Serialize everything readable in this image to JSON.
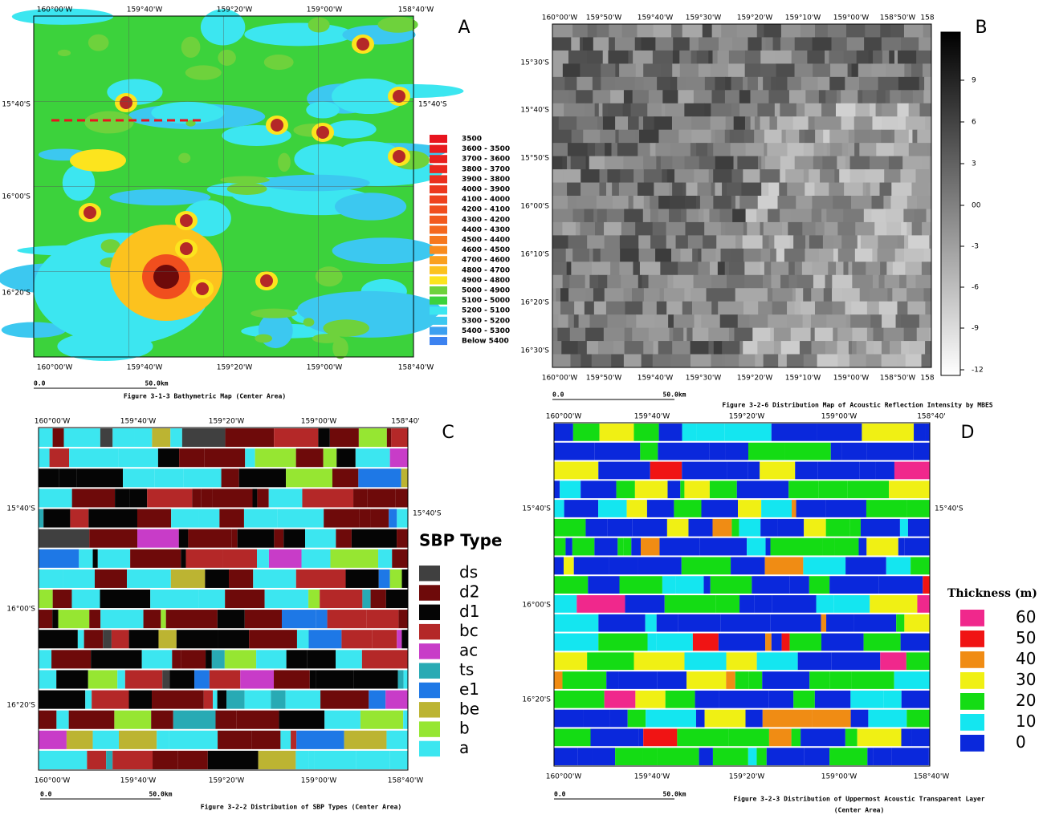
{
  "panels": [
    {
      "letter": "A",
      "top_labels": [
        "160°00'W",
        "159°40'W",
        "159°20'W",
        "159°00'W",
        "158°40'W"
      ],
      "bottom_labels": [
        "160°00'W",
        "159°40'W",
        "159°20'W",
        "159°00'W",
        "158°40'W"
      ],
      "left_labels": [
        "15°40'S",
        "16°00'S",
        "16°20'S"
      ],
      "right_labels": [
        "15°40'S"
      ],
      "legend": [
        {
          "label": "3500",
          "color": "#e8141e"
        },
        {
          "label": "3600 - 3500",
          "color": "#e81a1e"
        },
        {
          "label": "3700 - 3600",
          "color": "#e8201e"
        },
        {
          "label": "3800 - 3700",
          "color": "#ea281e"
        },
        {
          "label": "3900 - 3800",
          "color": "#ea301e"
        },
        {
          "label": "4000 - 3900",
          "color": "#ec381e"
        },
        {
          "label": "4100 - 4000",
          "color": "#ee421e"
        },
        {
          "label": "4200 - 4100",
          "color": "#f04e1e"
        },
        {
          "label": "4300 - 4200",
          "color": "#f25a1e"
        },
        {
          "label": "4400 - 4300",
          "color": "#f4681e"
        },
        {
          "label": "4500 - 4400",
          "color": "#f6781e"
        },
        {
          "label": "4600 - 4500",
          "color": "#f88c1e"
        },
        {
          "label": "4700 - 4600",
          "color": "#faa01e"
        },
        {
          "label": "4800 - 4700",
          "color": "#fcc21e"
        },
        {
          "label": "4900 - 4800",
          "color": "#fce41e"
        },
        {
          "label": "5000 - 4900",
          "color": "#6ed23c"
        },
        {
          "label": "5100 - 5000",
          "color": "#3cd23c"
        },
        {
          "label": "5200 - 5100",
          "color": "#3ce6f0"
        },
        {
          "label": "5300 - 5200",
          "color": "#3cc8f0"
        },
        {
          "label": "5400 - 5300",
          "color": "#3ca0f0"
        },
        {
          "label": "Below  5400",
          "color": "#3c82f0"
        }
      ],
      "scale": [
        "0.0",
        "50.0km"
      ],
      "caption": [
        "Figure 3-1-3 Bathymetric Map (Center Area)"
      ]
    },
    {
      "letter": "B",
      "top_labels": [
        "160°00'W",
        "159°50'W",
        "159°40'W",
        "159°30'W",
        "159°20'W",
        "159°10'W",
        "159°00'W",
        "158°50'W",
        "158"
      ],
      "bottom_labels": [
        "160°00'W",
        "159°50'W",
        "159°40'W",
        "159°30'W",
        "159°20'W",
        "159°10'W",
        "159°00'W",
        "158°50'W",
        "158"
      ],
      "left_labels": [
        "15°30'S",
        "15°40'S",
        "15°50'S",
        "16°00'S",
        "16°10'S",
        "16°20'S",
        "16°30'S"
      ],
      "right_labels": [],
      "colorbar_labels": [
        "9",
        "6",
        "3",
        "00",
        "-3",
        "-6",
        "-9",
        "-12"
      ],
      "scale": [
        "0.0",
        "50.0km"
      ],
      "caption": [
        "Figure 3-2-6 Distribution Map of Acoustic Reflection Intensity by MBES"
      ]
    },
    {
      "letter": "C",
      "top_labels": [
        "160°00'W",
        "159°40'W",
        "159°20'W",
        "159°00'W",
        "158°40'"
      ],
      "bottom_labels": [
        "160°00'W",
        "159°40'W",
        "159°20'W",
        "159°00'W",
        "158°40'W"
      ],
      "left_labels": [
        "15°40'S",
        "16°00'S",
        "16°20'S"
      ],
      "right_labels": [
        "15°40'S"
      ],
      "legend_title": "SBP Type",
      "legend": [
        {
          "label": "ds",
          "color": "#404040"
        },
        {
          "label": "d2",
          "color": "#6e0a0a"
        },
        {
          "label": "d1",
          "color": "#050505"
        },
        {
          "label": "bc",
          "color": "#b42828"
        },
        {
          "label": "ac",
          "color": "#c83cc8"
        },
        {
          "label": "ts",
          "color": "#28aab4"
        },
        {
          "label": "e1",
          "color": "#1e78e6"
        },
        {
          "label": "be",
          "color": "#bcb432"
        },
        {
          "label": "b",
          "color": "#96e632"
        },
        {
          "label": "a",
          "color": "#3ce6f0"
        }
      ],
      "scale": [
        "0.0",
        "50.0km"
      ],
      "caption": [
        "Figure 3-2-2 Distribution of SBP Types (Center Area)"
      ]
    },
    {
      "letter": "D",
      "top_labels": [
        "160°00'W",
        "159°40'W",
        "159°20'W",
        "159°00'W",
        "158°40'"
      ],
      "bottom_labels": [
        "160°00'W",
        "159°40'W",
        "159°20'W",
        "159°00'W",
        "158°40'W"
      ],
      "left_labels": [
        "15°40'S",
        "16°00'S",
        "16°20'S"
      ],
      "right_labels": [
        "15°40'S"
      ],
      "legend_title": "Thickness (m)",
      "legend": [
        {
          "label": "60",
          "color": "#f0288c"
        },
        {
          "label": "50",
          "color": "#f01414"
        },
        {
          "label": "40",
          "color": "#f08c14"
        },
        {
          "label": "30",
          "color": "#f0f014"
        },
        {
          "label": "20",
          "color": "#14dc14"
        },
        {
          "label": "10",
          "color": "#14e6f0"
        },
        {
          "label": "0",
          "color": "#0a28dc"
        }
      ],
      "scale": [
        "0.0",
        "50.0km"
      ],
      "caption": [
        "Figure 3-2-3 Distribution of Uppermost Acoustic Transparent Layer",
        "(Center Area)"
      ]
    }
  ]
}
